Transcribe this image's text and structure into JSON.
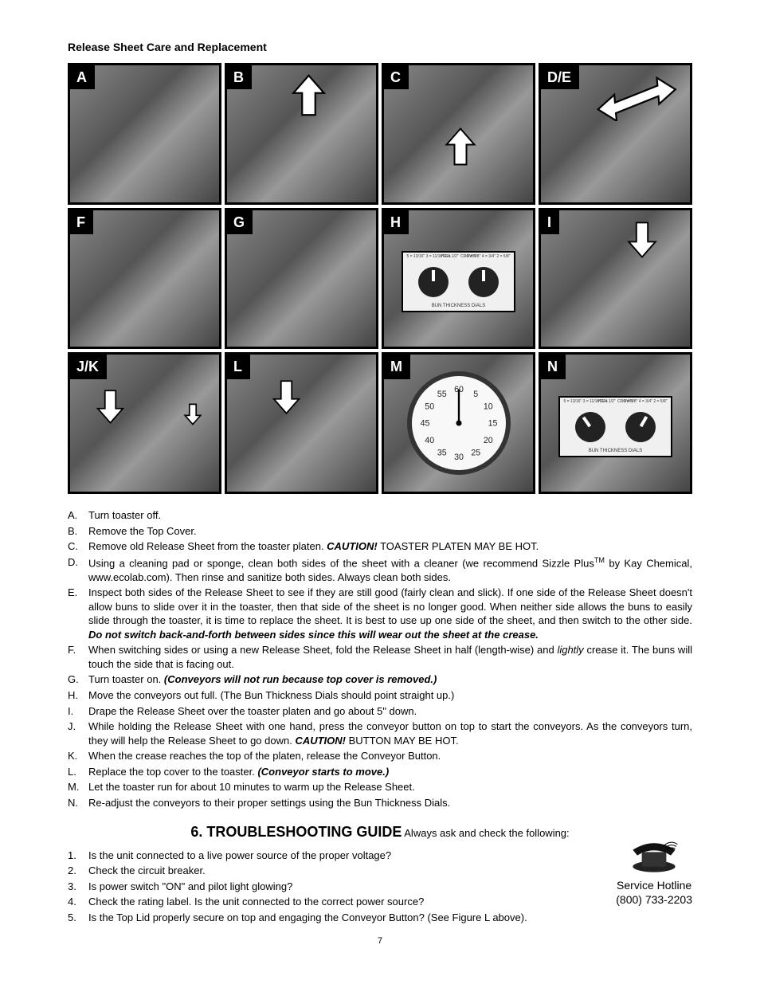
{
  "section_title": "Release Sheet Care and Replacement",
  "photo_labels": [
    "A",
    "B",
    "C",
    "D/E",
    "F",
    "G",
    "H",
    "I",
    "J/K",
    "L",
    "M",
    "N"
  ],
  "dial_panel": {
    "left_labels": "5 = 13/16\"\n3 = 11/16\"\n1 = 1/2\"",
    "heel": "HEEL",
    "crown": "CROWN",
    "right_labels": "6 = 7/8\"\n4 = 3/4\"\n2 = 5/8\"",
    "caption": "BUN THICKNESS DIALS"
  },
  "stopwatch_numbers": [
    "60",
    "5",
    "10",
    "15",
    "20",
    "25",
    "30",
    "35",
    "40",
    "45",
    "50",
    "55"
  ],
  "instructions": [
    {
      "m": "A.",
      "parts": [
        {
          "t": "Turn toaster off."
        }
      ]
    },
    {
      "m": "B.",
      "parts": [
        {
          "t": "Remove the Top Cover."
        }
      ]
    },
    {
      "m": "C.",
      "parts": [
        {
          "t": "Remove old Release Sheet from the toaster platen. "
        },
        {
          "t": "CAUTION!",
          "cls": "bolditalic"
        },
        {
          "t": "  TOASTER PLATEN MAY BE HOT."
        }
      ]
    },
    {
      "m": "D.",
      "parts": [
        {
          "t": "Using a cleaning pad or sponge, clean both sides of the sheet with a cleaner (we recommend Sizzle Plus"
        },
        {
          "t": "TM",
          "sup": true
        },
        {
          "t": " by Kay Chemical, www.ecolab.com).  Then rinse and sanitize both sides. Always clean both sides."
        }
      ]
    },
    {
      "m": "E.",
      "parts": [
        {
          "t": "Inspect both sides of the Release Sheet to see if they are still good (fairly clean and slick). If one side of the Release Sheet doesn't allow buns to slide over it in the toaster, then that side of the sheet is no longer good. When neither side allows the buns to easily slide through the toaster, it is time to replace the sheet. It is best to use up one side of the sheet, and then switch to the other side. "
        },
        {
          "t": "Do not switch back-and-forth between sides since this will wear out the sheet at the crease.",
          "cls": "bolditalic"
        }
      ]
    },
    {
      "m": "F.",
      "parts": [
        {
          "t": "When switching sides or using a new Release Sheet, fold the Release Sheet in half (length-wise) and "
        },
        {
          "t": "lightly",
          "cls": "italic"
        },
        {
          "t": " crease it. The buns will touch the side that is facing out."
        }
      ]
    },
    {
      "m": "G.",
      "parts": [
        {
          "t": "Turn toaster on. "
        },
        {
          "t": "(Conveyors will not run because top cover is removed.)",
          "cls": "bolditalic"
        }
      ]
    },
    {
      "m": "H.",
      "parts": [
        {
          "t": "Move the conveyors out full. (The Bun Thickness Dials should point straight up.)"
        }
      ]
    },
    {
      "m": "I.",
      "parts": [
        {
          "t": "Drape the Release Sheet over the toaster platen and go about 5\" down."
        }
      ]
    },
    {
      "m": "J.",
      "parts": [
        {
          "t": "While holding the Release Sheet with one hand, press the conveyor button on top to start the conveyors.  As the conveyors turn, they will help the Release Sheet to go down. "
        },
        {
          "t": "CAUTION!",
          "cls": "bolditalic"
        },
        {
          "t": "  BUTTON MAY BE HOT."
        }
      ]
    },
    {
      "m": "K.",
      "parts": [
        {
          "t": "When the crease reaches the top of the platen, release the Conveyor Button."
        }
      ]
    },
    {
      "m": "L.",
      "parts": [
        {
          "t": "Replace the top cover to the toaster.  "
        },
        {
          "t": "(Conveyor starts to move.)",
          "cls": "bolditalic"
        }
      ]
    },
    {
      "m": "M.",
      "parts": [
        {
          "t": "Let the toaster run for about 10 minutes to warm up the Release Sheet."
        }
      ]
    },
    {
      "m": "N.",
      "parts": [
        {
          "t": "Re-adjust the conveyors to their proper settings using the Bun Thickness Dials."
        }
      ]
    }
  ],
  "troubleshoot": {
    "heading": "6. TROUBLESHOOTING GUIDE",
    "sub": "Always ask and check the following:",
    "items": [
      {
        "m": "1.",
        "t": "Is the unit connected to a live power source of the proper voltage?"
      },
      {
        "m": "2.",
        "t": "Check the circuit breaker."
      },
      {
        "m": "3.",
        "t": "Is power switch \"ON\" and pilot light glowing?"
      },
      {
        "m": "4.",
        "t": "Check the rating label. Is the unit connected to the correct power source?"
      },
      {
        "m": "5.",
        "t": "Is the Top Lid properly secure on top and engaging the Conveyor Button? (See Figure L above)."
      }
    ],
    "hotline_label": "Service Hotline",
    "hotline_phone": "(800) 733-2203"
  },
  "page_number": "7",
  "colors": {
    "text": "#000000",
    "bg": "#ffffff",
    "label_bg": "#000000",
    "label_fg": "#ffffff"
  }
}
